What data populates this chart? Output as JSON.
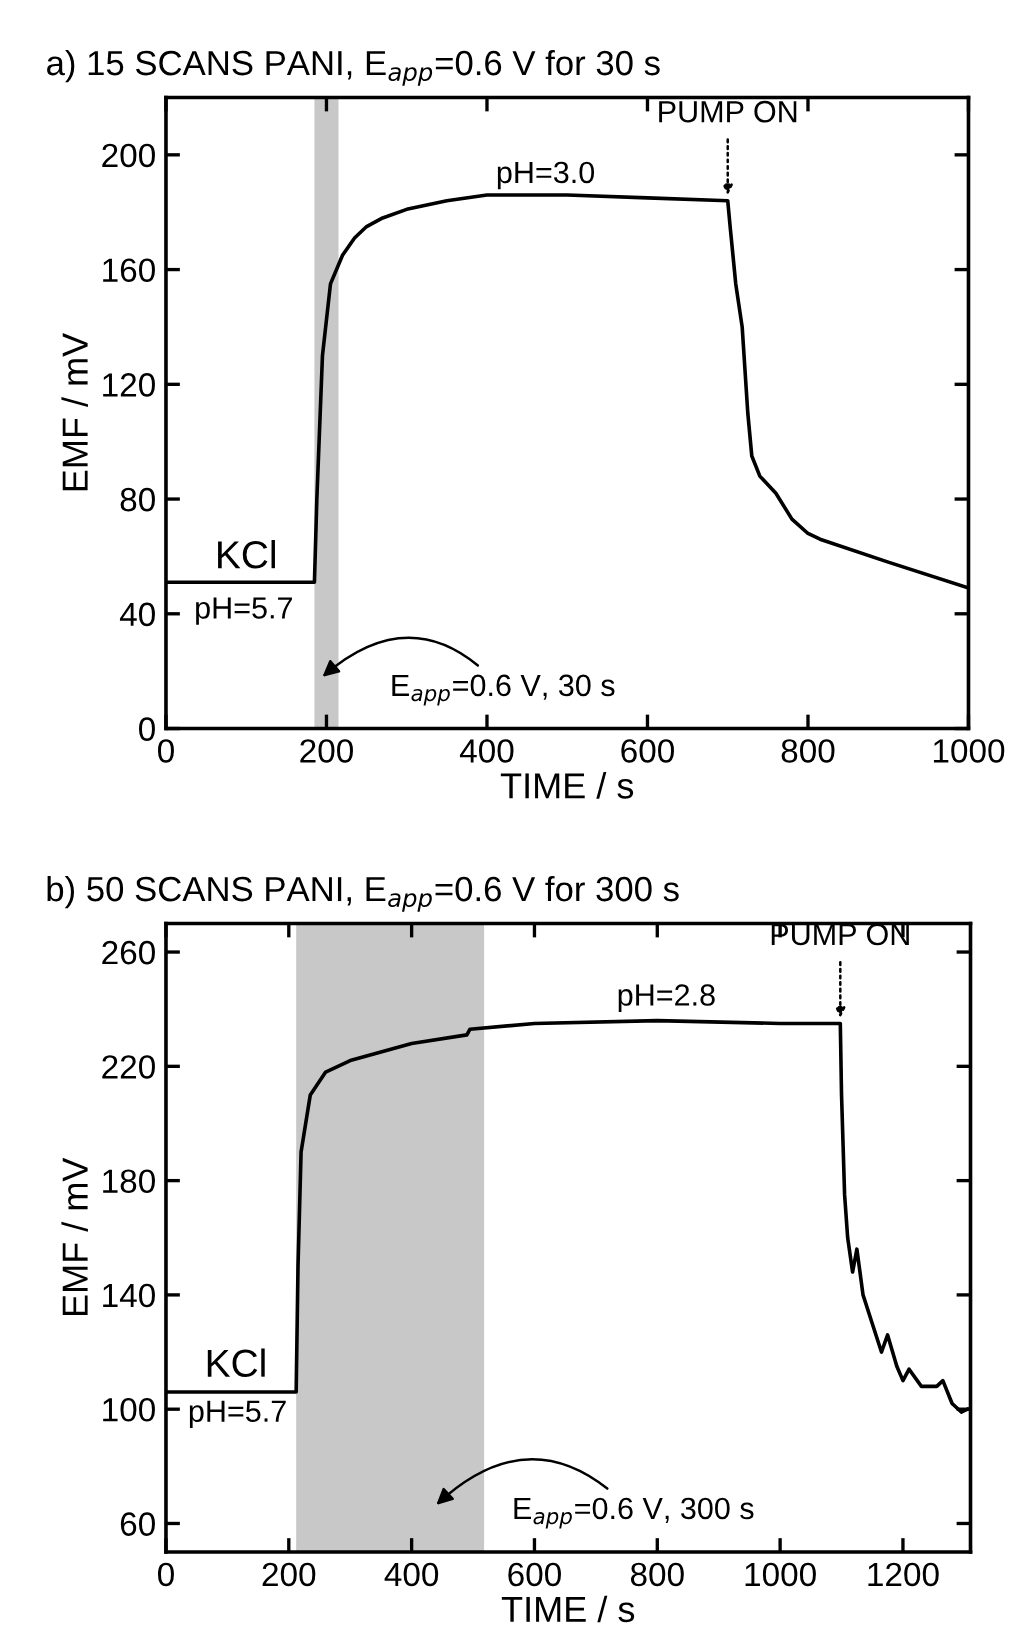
{
  "chart_data": [
    {
      "type": "line",
      "title": "a) 15 SCANS PANI, E$_{app}$=0.6 V for 30 s",
      "xlabel": "TIME / s",
      "ylabel": "EMF / mV",
      "x": [
        0,
        185,
        188,
        195,
        205,
        220,
        235,
        250,
        270,
        300,
        350,
        400,
        500,
        600,
        700,
        703,
        710,
        718,
        725,
        730,
        740,
        760,
        780,
        800,
        815,
        900,
        1000
      ],
      "series": [
        {
          "color": "#000000",
          "values": [
            51,
            51,
            80,
            130,
            155,
            165,
            171,
            175,
            178,
            181,
            184,
            186,
            186,
            185,
            184,
            175,
            155,
            140,
            110,
            95,
            88,
            82,
            73,
            68,
            66,
            58,
            49
          ]
        }
      ],
      "xlim": [
        0,
        1000
      ],
      "ylim": [
        0,
        220
      ],
      "xticks": [
        0,
        200,
        400,
        600,
        800,
        1000
      ],
      "yticks": [
        0,
        40,
        80,
        120,
        160,
        200
      ],
      "bands": [
        {
          "axis": "x",
          "from": 185,
          "to": 215,
          "color": "#c8c8c8"
        }
      ],
      "annotations": [
        "KCl",
        "pH=5.7",
        "pH=3.0",
        {
          "text": "PUMP ON",
          "x": 700,
          "y": 184
        },
        "E$_{app}$=0.6 V, 30 s"
      ],
      "grid": false,
      "marker": "none",
      "line_style": "solid"
    },
    {
      "type": "line",
      "title": "b) 50 SCANS PANI, E$_{app}$=0.6 V for 300 s",
      "xlabel": "TIME / s",
      "ylabel": "EMF / mV",
      "x": [
        0,
        212,
        215,
        220,
        235,
        260,
        300,
        400,
        490,
        495,
        600,
        800,
        1000,
        1098,
        1100,
        1105,
        1110,
        1118,
        1125,
        1135,
        1150,
        1165,
        1175,
        1190,
        1200,
        1210,
        1230,
        1255,
        1265,
        1280,
        1295,
        1305
      ],
      "series": [
        {
          "color": "#000000",
          "values": [
            106,
            106,
            150,
            190,
            210,
            218,
            222,
            228,
            231,
            233,
            235,
            236,
            235,
            235,
            210,
            175,
            160,
            148,
            156,
            140,
            130,
            120,
            126,
            115,
            110,
            114,
            108,
            108,
            110,
            102,
            99,
            100
          ]
        }
      ],
      "xlim": [
        0,
        1310
      ],
      "ylim": [
        50,
        270
      ],
      "xticks": [
        0,
        200,
        400,
        600,
        800,
        1000,
        1200
      ],
      "yticks": [
        60,
        100,
        140,
        180,
        220,
        260
      ],
      "bands": [
        {
          "axis": "x",
          "from": 212,
          "to": 518,
          "color": "#c8c8c8"
        }
      ],
      "annotations": [
        "KCl",
        "pH=5.7",
        "pH=2.8",
        {
          "text": "PUMP ON",
          "x": 1098,
          "y": 235
        },
        "E$_{app}$=0.6 V, 300 s"
      ],
      "grid": false,
      "marker": "none",
      "line_style": "solid"
    }
  ]
}
